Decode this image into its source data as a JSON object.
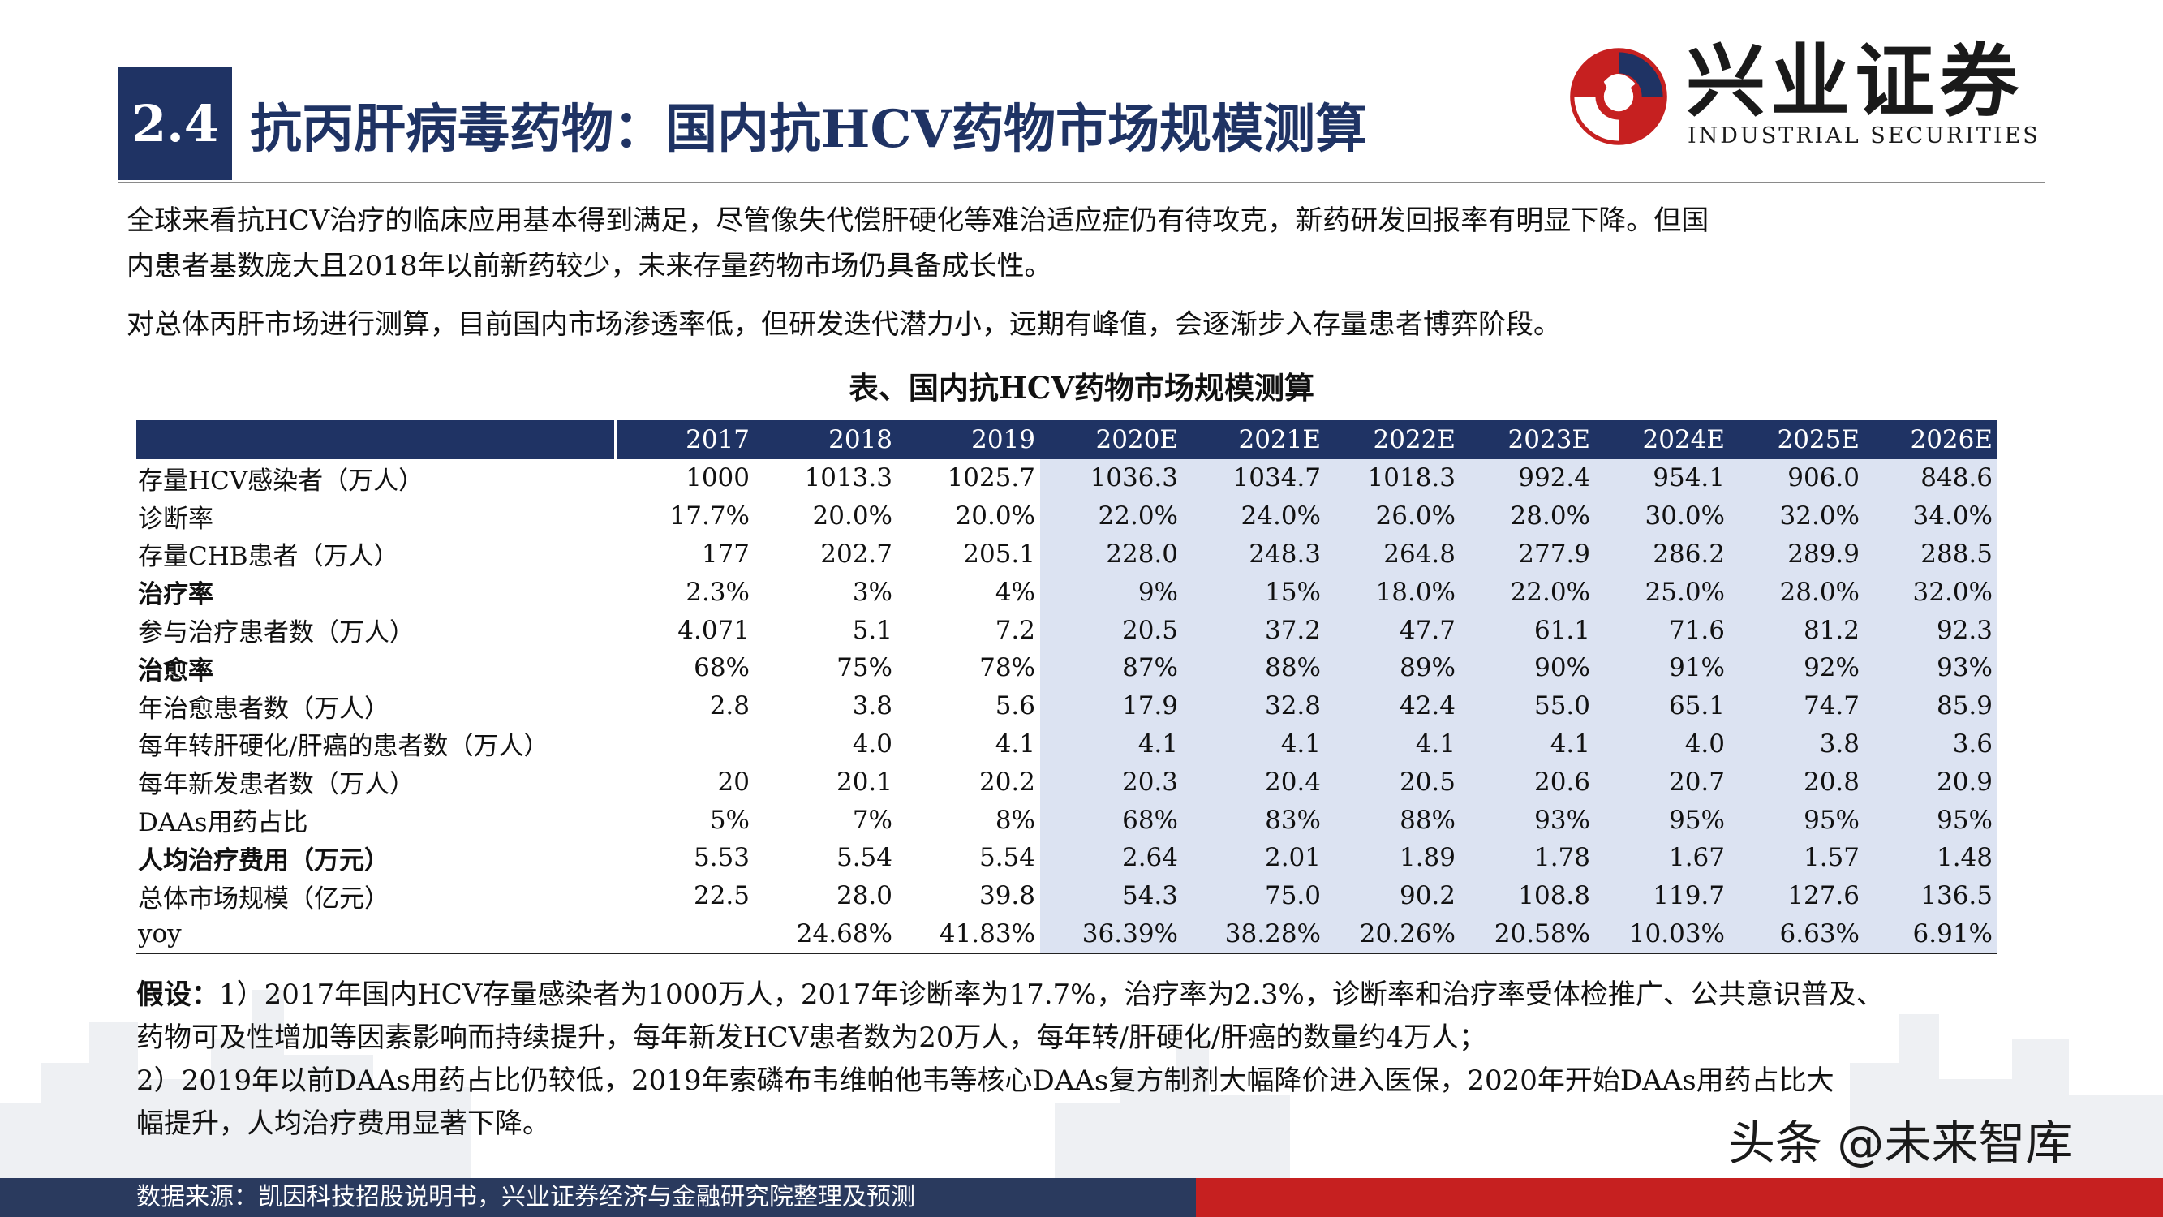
{
  "header": {
    "section_number": "2.4",
    "title": "抗丙肝病毒药物：国内抗HCV药物市场规模测算",
    "logo_cn": "兴业证券",
    "logo_en": "INDUSTRIAL SECURITIES"
  },
  "intro": {
    "para1_line1": "全球来看抗HCV治疗的临床应用基本得到满足，尽管像失代偿肝硬化等难治适应症仍有待攻克，新药研发回报率有明显下降。但国",
    "para1_line2": "内患者基数庞大且2018年以前新药较少，未来存量药物市场仍具备成长性。",
    "para2": "对总体丙肝市场进行测算，目前国内市场渗透率低，但研发迭代潜力小，远期有峰值，会逐渐步入存量患者博弈阶段。"
  },
  "table": {
    "caption": "表、国内抗HCV药物市场规模测算",
    "columns": [
      "2017",
      "2018",
      "2019",
      "2020E",
      "2021E",
      "2022E",
      "2023E",
      "2024E",
      "2025E",
      "2026E"
    ],
    "rows": [
      {
        "label": "存量HCV感染者（万人）",
        "bold": false,
        "values": [
          "1000",
          "1013.3",
          "1025.7",
          "1036.3",
          "1034.7",
          "1018.3",
          "992.4",
          "954.1",
          "906.0",
          "848.6"
        ]
      },
      {
        "label": "诊断率",
        "bold": false,
        "values": [
          "17.7%",
          "20.0%",
          "20.0%",
          "22.0%",
          "24.0%",
          "26.0%",
          "28.0%",
          "30.0%",
          "32.0%",
          "34.0%"
        ]
      },
      {
        "label": "存量CHB患者（万人）",
        "bold": false,
        "values": [
          "177",
          "202.7",
          "205.1",
          "228.0",
          "248.3",
          "264.8",
          "277.9",
          "286.2",
          "289.9",
          "288.5"
        ]
      },
      {
        "label": "治疗率",
        "bold": true,
        "values": [
          "2.3%",
          "3%",
          "4%",
          "9%",
          "15%",
          "18.0%",
          "22.0%",
          "25.0%",
          "28.0%",
          "32.0%"
        ]
      },
      {
        "label": "参与治疗患者数（万人）",
        "bold": false,
        "values": [
          "4.071",
          "5.1",
          "7.2",
          "20.5",
          "37.2",
          "47.7",
          "61.1",
          "71.6",
          "81.2",
          "92.3"
        ]
      },
      {
        "label": "治愈率",
        "bold": true,
        "values": [
          "68%",
          "75%",
          "78%",
          "87%",
          "88%",
          "89%",
          "90%",
          "91%",
          "92%",
          "93%"
        ]
      },
      {
        "label": "年治愈患者数（万人）",
        "bold": false,
        "values": [
          "2.8",
          "3.8",
          "5.6",
          "17.9",
          "32.8",
          "42.4",
          "55.0",
          "65.1",
          "74.7",
          "85.9"
        ]
      },
      {
        "label": "每年转肝硬化/肝癌的患者数（万人）",
        "bold": false,
        "values": [
          "",
          "4.0",
          "4.1",
          "4.1",
          "4.1",
          "4.1",
          "4.1",
          "4.0",
          "3.8",
          "3.6"
        ]
      },
      {
        "label": "每年新发患者数（万人）",
        "bold": false,
        "values": [
          "20",
          "20.1",
          "20.2",
          "20.3",
          "20.4",
          "20.5",
          "20.6",
          "20.7",
          "20.8",
          "20.9"
        ]
      },
      {
        "label": "DAAs用药占比",
        "bold": false,
        "values": [
          "5%",
          "7%",
          "8%",
          "68%",
          "83%",
          "88%",
          "93%",
          "95%",
          "95%",
          "95%"
        ]
      },
      {
        "label": "人均治疗费用（万元）",
        "bold": true,
        "values": [
          "5.53",
          "5.54",
          "5.54",
          "2.64",
          "2.01",
          "1.89",
          "1.78",
          "1.67",
          "1.57",
          "1.48"
        ]
      },
      {
        "label": "总体市场规模（亿元）",
        "bold": false,
        "values": [
          "22.5",
          "28.0",
          "39.8",
          "54.3",
          "75.0",
          "90.2",
          "108.8",
          "119.7",
          "127.6",
          "136.5"
        ]
      },
      {
        "label": "yoy",
        "bold": false,
        "values": [
          "",
          "24.68%",
          "41.83%",
          "36.39%",
          "38.28%",
          "20.26%",
          "20.58%",
          "10.03%",
          "6.63%",
          "6.91%"
        ]
      }
    ]
  },
  "assumptions": {
    "label": "假设：",
    "line1": "1）2017年国内HCV存量感染者为1000万人，2017年诊断率为17.7%，治疗率为2.3%，诊断率和治疗率受体检推广、公共意识普及、",
    "line2": "药物可及性增加等因素影响而持续提升，每年新发HCV患者数为20万人，每年转/肝硬化/肝癌的数量约4万人；",
    "line3": "2）2019年以前DAAs用药占比仍较低，2019年索磷布韦维帕他韦等核心DAAs复方制剂大幅降价进入医保，2020年开始DAAs用药占比大",
    "line4": "幅提升，人均治疗费用显著下降。"
  },
  "footer": {
    "source": "数据来源：凯因科技招股说明书，兴业证券经济与金融研究院整理及预测",
    "watermark": "头条 @未来智库"
  },
  "colors": {
    "navy": "#1f3364",
    "estimate_bg": "#dce3f2",
    "footer_red": "#c62020"
  }
}
